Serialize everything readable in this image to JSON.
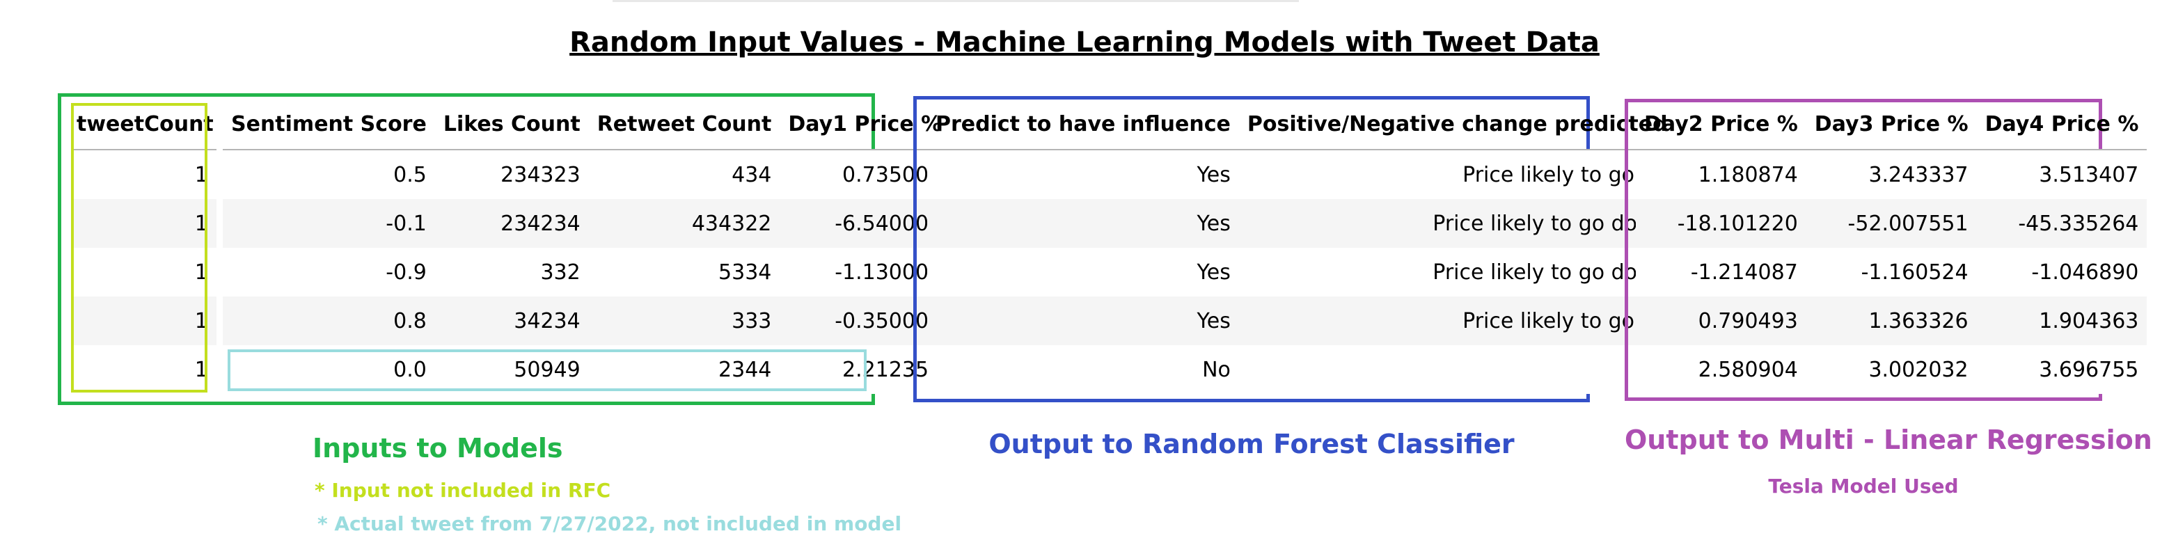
{
  "title": "Random Input Values - Machine Learning Models with Tweet Data",
  "colors": {
    "green": "#22b54a",
    "lime": "#c3df1e",
    "cyan": "#99dcde",
    "blue": "#3450c8",
    "purple": "#ad4fb2"
  },
  "inputs_table": {
    "tweetcount_header": "tweetCount",
    "tweetcount_values": [
      "1",
      "1",
      "1",
      "1",
      "1"
    ],
    "headers": [
      "Sentiment Score",
      "Likes Count",
      "Retweet Count",
      "Day1 Price %"
    ],
    "rows": [
      [
        "0.5",
        "234323",
        "434",
        "0.735000"
      ],
      [
        "-0.1",
        "234234",
        "434322",
        "-6.540000"
      ],
      [
        "-0.9",
        "332",
        "5334",
        "-1.130000"
      ],
      [
        "0.8",
        "34234",
        "333",
        "-0.350000"
      ],
      [
        "0.0",
        "50949",
        "2344",
        "2.212356"
      ]
    ]
  },
  "rfc_table": {
    "headers": [
      "Predict to have influence",
      "Positive/Negative change predicted"
    ],
    "rows": [
      [
        "Yes",
        "Price likely to go up"
      ],
      [
        "Yes",
        "Price likely to go down"
      ],
      [
        "Yes",
        "Price likely to go down"
      ],
      [
        "Yes",
        "Price likely to go up"
      ],
      [
        "No",
        ""
      ]
    ]
  },
  "mlr_table": {
    "headers": [
      "Day2 Price %",
      "Day3 Price %",
      "Day4 Price %"
    ],
    "rows": [
      [
        "1.180874",
        "3.243337",
        "3.513407"
      ],
      [
        "-18.101220",
        "-52.007551",
        "-45.335264"
      ],
      [
        "-1.214087",
        "-1.160524",
        "-1.046890"
      ],
      [
        "0.790493",
        "1.363326",
        "1.904363"
      ],
      [
        "2.580904",
        "3.002032",
        "3.696755"
      ]
    ]
  },
  "captions": {
    "inputs": "Inputs to Models",
    "input_note": "* Input not included in RFC",
    "tweet_note": "* Actual tweet from 7/27/2022, not included in model",
    "rfc": "Output to Random Forest Classifier",
    "mlr": "Output to Multi - Linear Regression",
    "mlr_sub": "Tesla Model Used"
  }
}
